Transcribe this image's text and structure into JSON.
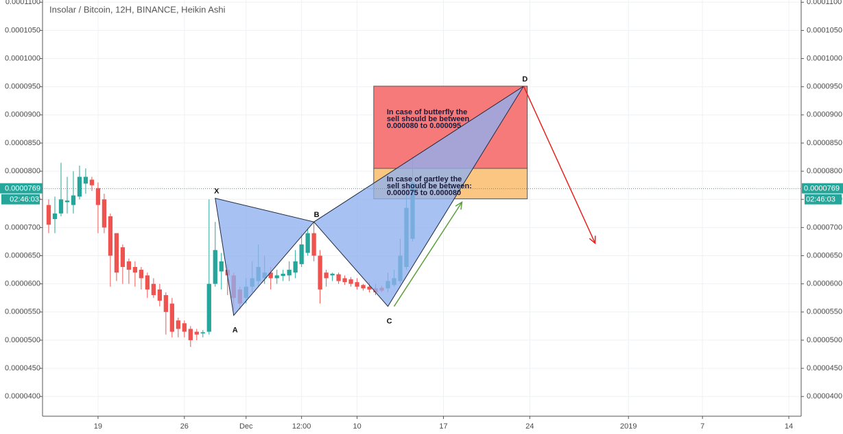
{
  "chart_data": {
    "type": "candlestick",
    "title": "Insolar / Bitcoin, 12H, BINANCE, Heikin Ashi",
    "up_color": "#26a69a",
    "down_color": "#ef5350",
    "grid": true,
    "xlim": [
      0,
      123
    ],
    "xticks": [
      {
        "value": 9,
        "label": "19"
      },
      {
        "value": 23,
        "label": "26"
      },
      {
        "value": 33,
        "label": "Dec"
      },
      {
        "value": 42,
        "label": "12:00"
      },
      {
        "value": 51,
        "label": "10"
      },
      {
        "value": 65,
        "label": "17"
      },
      {
        "value": 79,
        "label": "24"
      },
      {
        "value": 95,
        "label": "2019"
      },
      {
        "value": 107,
        "label": "7"
      },
      {
        "value": 121,
        "label": "14"
      }
    ],
    "ylim": [
      3.65e-05,
      0.0001104
    ],
    "yticks": [
      {
        "value": 4e-05,
        "label": "0.0000400"
      },
      {
        "value": 4.5e-05,
        "label": "0.0000450"
      },
      {
        "value": 5e-05,
        "label": "0.0000500"
      },
      {
        "value": 5.5e-05,
        "label": "0.0000550"
      },
      {
        "value": 6e-05,
        "label": "0.0000600"
      },
      {
        "value": 6.5e-05,
        "label": "0.0000650"
      },
      {
        "value": 7e-05,
        "label": "0.0000700"
      },
      {
        "value": 7.5e-05,
        "label": "0.0000750"
      },
      {
        "value": 8e-05,
        "label": "0.0000800"
      },
      {
        "value": 8.5e-05,
        "label": "0.0000850"
      },
      {
        "value": 9e-05,
        "label": "0.0000900"
      },
      {
        "value": 9.5e-05,
        "label": "0.0000950"
      },
      {
        "value": 0.0001,
        "label": "0.0001000"
      },
      {
        "value": 0.000105,
        "label": "0.0001050"
      },
      {
        "value": 0.00011,
        "label": "0.0001100"
      }
    ],
    "x": [
      1,
      2,
      3,
      4,
      5,
      6,
      7,
      8,
      9,
      10,
      11,
      12,
      13,
      14,
      15,
      16,
      17,
      18,
      19,
      20,
      21,
      22,
      23,
      24,
      25,
      26,
      27,
      28,
      29,
      30,
      31,
      32,
      33,
      34,
      35,
      36,
      37,
      38,
      39,
      40,
      41,
      42,
      43,
      44,
      45,
      46,
      47,
      48,
      49,
      50,
      51,
      52,
      53,
      54,
      55,
      56,
      57,
      58,
      59,
      60
    ],
    "open": [
      7.4e-05,
      7.15e-05,
      7.25e-05,
      7.45e-05,
      7.4e-05,
      7.55e-05,
      7.78e-05,
      7.85e-05,
      7.7e-05,
      7.5e-05,
      7.2e-05,
      6.9e-05,
      6.65e-05,
      6.4e-05,
      6.3e-05,
      6.25e-05,
      6.15e-05,
      6e-05,
      5.9e-05,
      5.8e-05,
      5.65e-05,
      5.35e-05,
      5.3e-05,
      5.2e-05,
      5.15e-05,
      5.12e-05,
      5.15e-05,
      6e-05,
      6.22e-05,
      6.25e-05,
      6.15e-05,
      5.9e-05,
      5.75e-05,
      5.95e-05,
      6.05e-05,
      6.1e-05,
      6.2e-05,
      6.1e-05,
      6.14e-05,
      6.15e-05,
      6.2e-05,
      6.35e-05,
      6.55e-05,
      6.9e-05,
      6.5e-05,
      6.2e-05,
      6.15e-05,
      6.17e-05,
      6.1e-05,
      6.08e-05,
      6.03e-05,
      5.98e-05,
      5.95e-05,
      5.92e-05,
      5.93e-05,
      5.92e-05,
      5.98e-05,
      6.05e-05,
      6.3e-05,
      6.8e-05
    ],
    "high": [
      7.5e-05,
      7.55e-05,
      8.15e-05,
      7.9e-05,
      8e-05,
      8.1e-05,
      8.05e-05,
      7.9e-05,
      7.8e-05,
      7.6e-05,
      7.25e-05,
      6.9e-05,
      6.7e-05,
      6.45e-05,
      6.4e-05,
      6.3e-05,
      6.2e-05,
      6.1e-05,
      6e-05,
      5.85e-05,
      5.75e-05,
      5.4e-05,
      5.35e-05,
      5.25e-05,
      5.2e-05,
      5.18e-05,
      7.5e-05,
      7.1e-05,
      6.55e-05,
      6.35e-05,
      6.2e-05,
      5.95e-05,
      6.1e-05,
      6.4e-05,
      6.7e-05,
      6.5e-05,
      6.3e-05,
      6.25e-05,
      6.25e-05,
      6.4e-05,
      6.6e-05,
      6.9e-05,
      7e-05,
      7.1e-05,
      6.6e-05,
      6.25e-05,
      6.2e-05,
      6.2e-05,
      6.15e-05,
      6.12e-05,
      6.1e-05,
      6e-05,
      6.03e-05,
      6e-05,
      5.97e-05,
      6.2e-05,
      6.25e-05,
      6.8e-05,
      7.6e-05,
      8.25e-05
    ],
    "low": [
      6.9e-05,
      6.9e-05,
      7.2e-05,
      7.25e-05,
      7.25e-05,
      7.5e-05,
      7.6e-05,
      7.65e-05,
      6.9e-05,
      6.9e-05,
      5.95e-05,
      6.05e-05,
      6e-05,
      6e-05,
      5.95e-05,
      5.9e-05,
      5.75e-05,
      5.75e-05,
      5.6e-05,
      5.1e-05,
      5.05e-05,
      5.05e-05,
      5.05e-05,
      4.88e-05,
      5e-05,
      5.05e-05,
      5.1e-05,
      5.95e-05,
      5.9e-05,
      5.8e-05,
      5.55e-05,
      5.55e-05,
      5.65e-05,
      5.85e-05,
      5.95e-05,
      6e-05,
      5.9e-05,
      6e-05,
      6.05e-05,
      6.05e-05,
      6.1e-05,
      6.3e-05,
      6.5e-05,
      6.4e-05,
      5.65e-05,
      5.95e-05,
      6.05e-05,
      6e-05,
      5.98e-05,
      5.95e-05,
      5.9e-05,
      5.88e-05,
      5.85e-05,
      5.8e-05,
      5.85e-05,
      5.85e-05,
      5.95e-05,
      6e-05,
      6.25e-05,
      6.75e-05
    ],
    "close": [
      7.05e-05,
      7.25e-05,
      7.5e-05,
      7.48e-05,
      7.57e-05,
      7.9e-05,
      7.9e-05,
      7.75e-05,
      7.4e-05,
      7e-05,
      6.5e-05,
      6.2e-05,
      6.3e-05,
      6.25e-05,
      6.2e-05,
      6.1e-05,
      5.9e-05,
      5.8e-05,
      5.7e-05,
      5.5e-05,
      5.15e-05,
      5.2e-05,
      5.15e-05,
      5e-05,
      5.1e-05,
      5.14e-05,
      6e-05,
      6.6e-05,
      6.4e-05,
      6.15e-05,
      5.75e-05,
      5.65e-05,
      5.95e-05,
      6.1e-05,
      6.3e-05,
      6.2e-05,
      6.1e-05,
      6.15e-05,
      6.18e-05,
      6.25e-05,
      6.4e-05,
      6.7e-05,
      6.9e-05,
      6.5e-05,
      5.9e-05,
      6.1e-05,
      6.18e-05,
      6.05e-05,
      6.03e-05,
      6e-05,
      5.95e-05,
      5.92e-05,
      5.9e-05,
      5.85e-05,
      5.88e-05,
      6.05e-05,
      6.1e-05,
      6.5e-05,
      7.35e-05,
      7.8e-05
    ],
    "last_price": {
      "value": 7.69e-05,
      "label": "0.0000769",
      "countdown": "02:46:03",
      "color": "#26a69a"
    },
    "pattern_color": "#8fb0f0",
    "pattern_points": [
      {
        "label": "X",
        "x": 28,
        "y": 7.52e-05
      },
      {
        "label": "A",
        "x": 31,
        "y": 5.44e-05
      },
      {
        "label": "B",
        "x": 44,
        "y": 7.1e-05
      },
      {
        "label": "C",
        "x": 56,
        "y": 5.6e-05
      },
      {
        "label": "D",
        "x": 78,
        "y": 9.51e-05
      }
    ],
    "zones": [
      {
        "x": [
          53.7,
          78.6
        ],
        "y": [
          9.51e-05,
          8.05e-05
        ],
        "color": "#f77a7a",
        "text": [
          "In case of butterfly the",
          "sell should be between",
          "0.000080 to 0.000095"
        ]
      },
      {
        "x": [
          53.7,
          78.6
        ],
        "y": [
          8.05e-05,
          7.51e-05
        ],
        "color": "#fbc682",
        "text": [
          "In case of gartley the",
          "sell should be between:",
          "0.000075 to 0.000080"
        ]
      }
    ],
    "arrows": [
      {
        "from": [
          57,
          5.6e-05
        ],
        "to": [
          68,
          7.45e-05
        ],
        "color": "#5c9e3c"
      },
      {
        "from": [
          78,
          9.51e-05
        ],
        "to": [
          89.6,
          6.72e-05
        ],
        "color": "#e8211d"
      }
    ]
  }
}
